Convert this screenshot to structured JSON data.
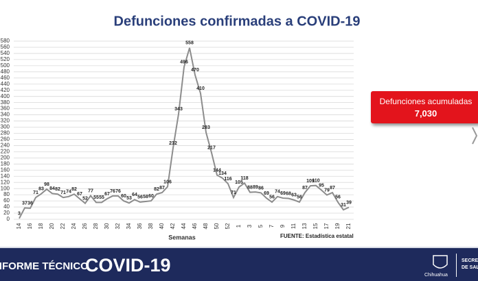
{
  "chart_data": {
    "type": "line",
    "title": "Defunciones confirmadas a COVID-19",
    "x_label": "Semanas",
    "source": "FUENTE: Estadística estatal",
    "categories": [
      "14",
      null,
      "16",
      null,
      "18",
      null,
      "20",
      null,
      "22",
      null,
      "24",
      null,
      "26",
      null,
      "28",
      null,
      "30",
      null,
      "32",
      null,
      "34",
      null,
      "36",
      null,
      "38",
      null,
      "40",
      null,
      "42",
      null,
      "44",
      null,
      "46",
      null,
      "48",
      null,
      "50",
      null,
      "52",
      null,
      "1",
      null,
      "3",
      null,
      "5",
      null,
      "7",
      null,
      "9",
      null,
      "11",
      null,
      "13",
      null,
      "15",
      null,
      "17",
      null,
      "19",
      null,
      "21"
    ],
    "series": [
      {
        "name": "Defunciones",
        "color": "#8c8c8c",
        "values": [
          3,
          37,
          36,
          71,
          83,
          98,
          84,
          82,
          71,
          74,
          82,
          67,
          52,
          77,
          55,
          55,
          67,
          76,
          76,
          60,
          53,
          64,
          56,
          58,
          60,
          82,
          87,
          106,
          232,
          343,
          496,
          558,
          470,
          410,
          283,
          217,
          144,
          134,
          116,
          71,
          105,
          118,
          88,
          89,
          86,
          69,
          56,
          74,
          69,
          68,
          63,
          56,
          87,
          109,
          110,
          95,
          79,
          87,
          56,
          31,
          39
        ]
      }
    ],
    "ylim": [
      0,
      580
    ],
    "yticks": [
      0,
      20,
      40,
      60,
      80,
      100,
      120,
      140,
      160,
      180,
      200,
      220,
      240,
      260,
      280,
      300,
      320,
      340,
      360,
      380,
      400,
      420,
      440,
      460,
      480,
      500,
      520,
      540,
      560,
      580
    ],
    "grid": true
  },
  "summary": {
    "label": "Defunciones acumuladas",
    "value": "7,030"
  },
  "footer": {
    "report": "INFORME TÉCNICO",
    "topic": "COVID-19",
    "state": "Chihuahua",
    "agency": "SECRETARÍA DE SALUD"
  }
}
